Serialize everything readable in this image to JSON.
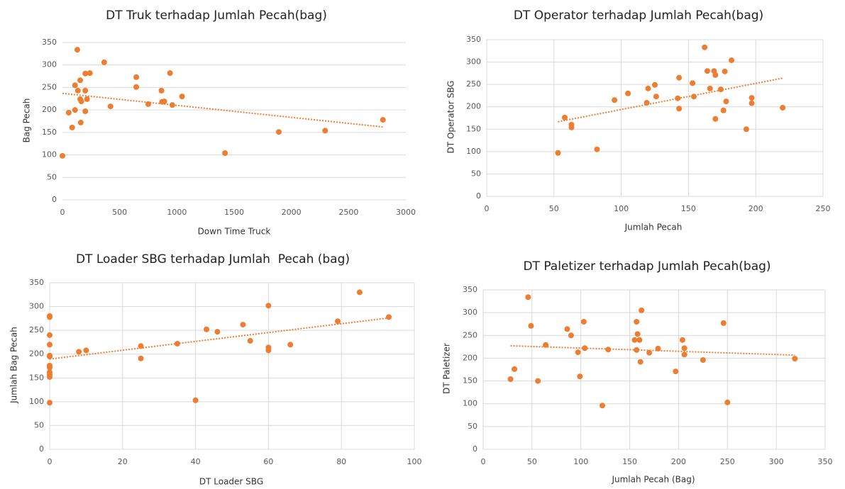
{
  "chart_data": [
    {
      "type": "scatter",
      "title": "DT Truk terhadap Jumlah Pecah(bag)",
      "x_label": "Down Time Truck",
      "y_label": "Bag Pecah",
      "xlim": [
        0,
        3000
      ],
      "xticks": [
        0,
        500,
        1000,
        1500,
        2000,
        2500,
        3000
      ],
      "ylim": [
        0,
        350
      ],
      "yticks": [
        0,
        50,
        100,
        150,
        200,
        250,
        300,
        350
      ],
      "grid": "y",
      "trendline": "linear",
      "color": "#ed7d31",
      "series": [
        {
          "x": [
            0,
            55,
            85,
            110,
            110,
            130,
            135,
            155,
            155,
            160,
            165,
            200,
            200,
            200,
            215,
            240,
            365,
            420,
            645,
            645,
            750,
            865,
            870,
            890,
            940,
            960,
            1045,
            1420,
            1890,
            2295,
            2800
          ],
          "values": [
            98,
            194,
            161,
            200,
            255,
            334,
            243,
            266,
            224,
            172,
            219,
            281,
            243,
            197,
            224,
            282,
            306,
            208,
            273,
            251,
            213,
            243,
            218,
            219,
            282,
            211,
            230,
            104,
            151,
            154,
            178
          ]
        }
      ]
    },
    {
      "type": "scatter",
      "title": "DT Operator terhadap Jumlah Pecah(bag)",
      "x_label": "Jumlah Pecah",
      "y_label": "DT Operator SBG",
      "xlim": [
        0,
        250
      ],
      "xticks": [
        0,
        50,
        100,
        150,
        200,
        250
      ],
      "ylim": [
        0,
        350
      ],
      "yticks": [
        0,
        50,
        100,
        150,
        200,
        250,
        300,
        350
      ],
      "grid": "both",
      "trendline": "linear",
      "color": "#ed7d31",
      "series": [
        {
          "x": [
            53,
            58,
            63,
            63,
            82,
            95,
            105,
            119,
            120,
            125,
            126,
            142,
            143,
            143,
            153,
            154,
            162,
            164,
            166,
            169,
            170,
            170,
            174,
            176,
            177,
            178,
            182,
            193,
            197,
            197,
            220
          ],
          "values": [
            97,
            176,
            160,
            154,
            105,
            215,
            230,
            209,
            241,
            249,
            223,
            219,
            265,
            196,
            253,
            223,
            333,
            280,
            241,
            280,
            271,
            173,
            239,
            192,
            279,
            212,
            304,
            150,
            220,
            208,
            198
          ]
        }
      ]
    },
    {
      "type": "scatter",
      "title": "DT Loader SBG terhadap Jumlah  Pecah (bag)",
      "x_label": "DT Loader SBG",
      "y_label": "Jumlah Bag Pecah",
      "xlim": [
        0,
        100
      ],
      "xticks": [
        0,
        20,
        40,
        60,
        80,
        100
      ],
      "ylim": [
        0,
        350
      ],
      "yticks": [
        0,
        50,
        100,
        150,
        200,
        250,
        300,
        350
      ],
      "grid": "both",
      "trendline": "linear",
      "color": "#ed7d31",
      "series": [
        {
          "x": [
            0,
            0,
            0,
            0,
            0,
            0,
            0,
            0,
            0,
            0,
            0,
            0,
            8,
            10,
            25,
            25,
            35,
            40,
            43,
            46,
            53,
            55,
            60,
            60,
            60,
            66,
            79,
            85,
            93
          ],
          "values": [
            98,
            278,
            280,
            240,
            220,
            197,
            195,
            176,
            172,
            162,
            157,
            152,
            205,
            208,
            217,
            191,
            222,
            103,
            252,
            247,
            262,
            228,
            302,
            214,
            208,
            220,
            269,
            330,
            278
          ]
        }
      ]
    },
    {
      "type": "scatter",
      "title": "DT Paletizer terhadap Jumlah Pecah(bag)",
      "x_label": "Jumlah Pecah (Bag)",
      "y_label": "DT Paletizer",
      "xlim": [
        0,
        350
      ],
      "xticks": [
        0,
        50,
        100,
        150,
        200,
        250,
        300,
        350
      ],
      "ylim": [
        0,
        350
      ],
      "yticks": [
        0,
        50,
        100,
        150,
        200,
        250,
        300,
        350
      ],
      "grid": "both",
      "trendline": "linear",
      "color": "#ed7d31",
      "series": [
        {
          "x": [
            28,
            32,
            46,
            49,
            64,
            56,
            86,
            90,
            97,
            99,
            103,
            104,
            122,
            128,
            155,
            157,
            158,
            157,
            160,
            161,
            162,
            170,
            179,
            197,
            204,
            206,
            206,
            225,
            246,
            250,
            319
          ],
          "values": [
            154,
            176,
            334,
            271,
            229,
            150,
            264,
            250,
            213,
            160,
            280,
            222,
            96,
            219,
            240,
            280,
            253,
            218,
            240,
            192,
            305,
            212,
            221,
            171,
            240,
            222,
            208,
            196,
            277,
            103,
            199
          ]
        }
      ]
    }
  ]
}
